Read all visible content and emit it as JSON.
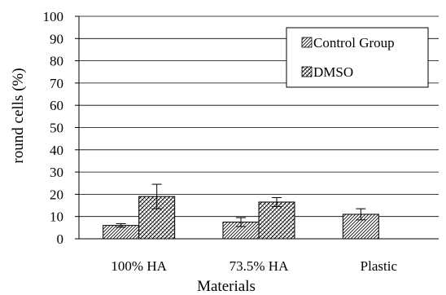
{
  "chart_data": {
    "type": "bar",
    "title": "",
    "xlabel": "Materials",
    "ylabel": "round cells (%)",
    "ylim": [
      0,
      100
    ],
    "yticks": [
      0,
      10,
      20,
      30,
      40,
      50,
      60,
      70,
      80,
      90,
      100
    ],
    "categories": [
      "100% HA",
      "73.5% HA",
      "Plastic"
    ],
    "series": [
      {
        "name": "Control Group",
        "values": [
          6,
          7.5,
          11
        ],
        "errors": [
          0.8,
          2,
          2.5
        ],
        "pattern": "hatch-fine"
      },
      {
        "name": "DMSO",
        "values": [
          19,
          16.5,
          null
        ],
        "errors": [
          5.5,
          2,
          null
        ],
        "pattern": "hatch-cross"
      }
    ],
    "grid": true,
    "legend_position": "top-right"
  }
}
